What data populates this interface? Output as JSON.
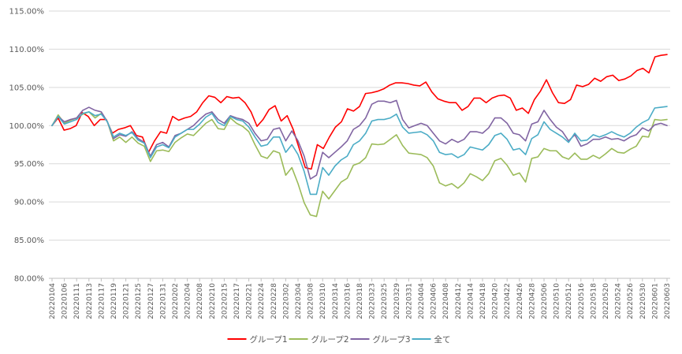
{
  "chart_data": {
    "type": "line",
    "ylim": [
      0.8,
      1.15
    ],
    "y_ticks": [
      "80.00%",
      "85.00%",
      "90.00%",
      "95.00%",
      "100.00%",
      "105.00%",
      "110.00%",
      "115.00%"
    ],
    "grid": "horizontal",
    "legend_position": "bottom",
    "x_tick_labels": [
      "20220104",
      "20220106",
      "20220111",
      "20220113",
      "20220117",
      "20220119",
      "20220121",
      "20220125",
      "20220127",
      "20220131",
      "20220202",
      "20220204",
      "20220208",
      "20220210",
      "20220215",
      "20220217",
      "20220221",
      "20220224",
      "20220228",
      "20220302",
      "20220304",
      "20220308",
      "20220310",
      "20220314",
      "20220316",
      "20220318",
      "20220323",
      "20220325",
      "20220329",
      "20220331",
      "20220404",
      "20220406",
      "20220408",
      "20220412",
      "20220414",
      "20220418",
      "20220420",
      "20220422",
      "20220426",
      "20220428",
      "20220506",
      "20220510",
      "20220512",
      "20220516",
      "20220518",
      "20220520",
      "20220524",
      "20220526",
      "20220530",
      "20220601",
      "20220603"
    ],
    "series": [
      {
        "name": "グループ1",
        "color": "#ff0000",
        "values": [
          1.0,
          1.01,
          0.994,
          0.996,
          1.0,
          1.017,
          1.012,
          1.0,
          1.008,
          1.008,
          0.99,
          0.995,
          0.997,
          1.0,
          0.987,
          0.985,
          0.965,
          0.98,
          0.992,
          0.99,
          1.012,
          1.007,
          1.01,
          1.012,
          1.018,
          1.03,
          1.039,
          1.037,
          1.03,
          1.038,
          1.036,
          1.037,
          1.03,
          1.018,
          0.999,
          1.008,
          1.021,
          1.026,
          1.006,
          1.013,
          0.995,
          0.97,
          0.945,
          0.943,
          0.975,
          0.97,
          0.985,
          0.998,
          1.005,
          1.022,
          1.019,
          1.025,
          1.042,
          1.043,
          1.045,
          1.048,
          1.053,
          1.056,
          1.056,
          1.055,
          1.053,
          1.052,
          1.057,
          1.044,
          1.035,
          1.032,
          1.03,
          1.03,
          1.02,
          1.025,
          1.036,
          1.036,
          1.03,
          1.036,
          1.039,
          1.04,
          1.036,
          1.02,
          1.023,
          1.016,
          1.034,
          1.045,
          1.06,
          1.043,
          1.03,
          1.029,
          1.034,
          1.053,
          1.051,
          1.054,
          1.062,
          1.058,
          1.064,
          1.066,
          1.059,
          1.061,
          1.065,
          1.072,
          1.075,
          1.069,
          1.09,
          1.092,
          1.093
        ]
      },
      {
        "name": "グループ2",
        "color": "#9bbb59",
        "values": [
          1.0,
          1.014,
          1.003,
          1.007,
          1.01,
          1.015,
          1.018,
          1.01,
          1.016,
          1.005,
          0.98,
          0.985,
          0.978,
          0.985,
          0.977,
          0.973,
          0.953,
          0.967,
          0.968,
          0.966,
          0.978,
          0.984,
          0.989,
          0.987,
          0.995,
          1.003,
          1.008,
          0.996,
          0.995,
          1.01,
          1.003,
          0.999,
          0.992,
          0.975,
          0.96,
          0.957,
          0.967,
          0.964,
          0.935,
          0.945,
          0.924,
          0.899,
          0.883,
          0.881,
          0.914,
          0.904,
          0.915,
          0.926,
          0.931,
          0.948,
          0.951,
          0.958,
          0.976,
          0.975,
          0.976,
          0.982,
          0.988,
          0.974,
          0.964,
          0.963,
          0.962,
          0.958,
          0.947,
          0.925,
          0.921,
          0.924,
          0.918,
          0.925,
          0.937,
          0.933,
          0.928,
          0.937,
          0.954,
          0.957,
          0.948,
          0.935,
          0.938,
          0.926,
          0.957,
          0.959,
          0.97,
          0.967,
          0.967,
          0.959,
          0.956,
          0.964,
          0.956,
          0.956,
          0.961,
          0.957,
          0.963,
          0.97,
          0.965,
          0.964,
          0.969,
          0.973,
          0.986,
          0.985,
          1.008,
          1.007,
          1.008
        ]
      },
      {
        "name": "グループ3",
        "color": "#8064a2",
        "values": [
          1.0,
          1.012,
          1.005,
          1.008,
          1.01,
          1.02,
          1.024,
          1.02,
          1.018,
          1.005,
          0.983,
          0.988,
          0.986,
          0.992,
          0.983,
          0.978,
          0.96,
          0.975,
          0.978,
          0.972,
          0.987,
          0.99,
          0.995,
          1.0,
          1.008,
          1.015,
          1.018,
          1.008,
          1.003,
          1.013,
          1.01,
          1.008,
          1.003,
          0.99,
          0.98,
          0.982,
          0.995,
          0.997,
          0.98,
          0.993,
          0.98,
          0.96,
          0.93,
          0.935,
          0.965,
          0.958,
          0.965,
          0.972,
          0.98,
          0.995,
          1.0,
          1.01,
          1.028,
          1.032,
          1.032,
          1.03,
          1.033,
          1.008,
          0.997,
          1.0,
          1.003,
          1.0,
          0.99,
          0.98,
          0.976,
          0.982,
          0.978,
          0.982,
          0.992,
          0.992,
          0.99,
          0.997,
          1.01,
          1.01,
          1.003,
          0.99,
          0.988,
          0.98,
          1.002,
          1.005,
          1.02,
          1.008,
          0.998,
          0.992,
          0.98,
          0.988,
          0.973,
          0.976,
          0.982,
          0.982,
          0.985,
          0.982,
          0.983,
          0.98,
          0.985,
          0.988,
          0.997,
          0.993,
          1.001,
          1.003,
          1.0
        ]
      },
      {
        "name": "全て",
        "color": "#4bacc6",
        "values": [
          1.0,
          1.012,
          1.002,
          1.005,
          1.008,
          1.016,
          1.018,
          1.013,
          1.015,
          1.005,
          0.985,
          0.99,
          0.987,
          0.991,
          0.981,
          0.977,
          0.958,
          0.972,
          0.975,
          0.971,
          0.985,
          0.99,
          0.995,
          0.995,
          1.002,
          1.011,
          1.016,
          1.004,
          1.0,
          1.012,
          1.008,
          1.006,
          0.998,
          0.985,
          0.973,
          0.975,
          0.985,
          0.985,
          0.965,
          0.975,
          0.962,
          0.94,
          0.91,
          0.91,
          0.945,
          0.935,
          0.947,
          0.955,
          0.96,
          0.975,
          0.98,
          0.99,
          1.006,
          1.008,
          1.008,
          1.01,
          1.015,
          0.998,
          0.99,
          0.991,
          0.992,
          0.988,
          0.98,
          0.965,
          0.962,
          0.963,
          0.958,
          0.962,
          0.972,
          0.97,
          0.968,
          0.975,
          0.987,
          0.99,
          0.982,
          0.968,
          0.97,
          0.962,
          0.983,
          0.988,
          1.005,
          0.995,
          0.99,
          0.985,
          0.978,
          0.99,
          0.98,
          0.981,
          0.988,
          0.985,
          0.988,
          0.992,
          0.988,
          0.985,
          0.99,
          0.998,
          1.004,
          1.008,
          1.023,
          1.024,
          1.025
        ]
      }
    ]
  }
}
